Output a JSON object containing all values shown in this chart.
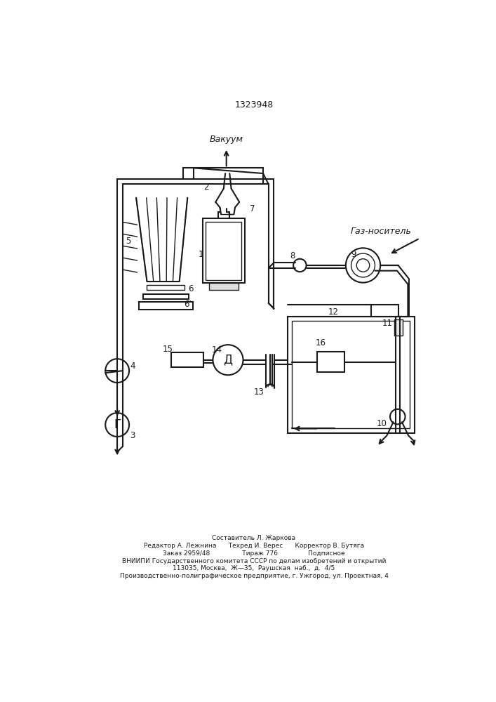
{
  "title": "1323948",
  "bg": "#ffffff",
  "lc": "#1a1a1a",
  "lw": 1.5,
  "lw2": 1.0,
  "vakuum": "Вакуум",
  "gaz": "Газ-носитель",
  "det_letter": "Д",
  "gauge_letter": "Г",
  "footer": [
    "Составитель Л. Жаркова",
    "Редактор А. Лежнина      Техред И. Верес      Корректор В. Бутяга",
    "Заказ 2959/48                Тираж 776               Подписное",
    "ВНИИПИ Государственного комитета СССР по делам изобретений и открытий",
    "113035, Москва,  Ж—35,  Раушская  наб.,  д.  4/5",
    "Производственно-полиграфическое предприятие, г. Ужгород, ул. Проектная, 4"
  ]
}
